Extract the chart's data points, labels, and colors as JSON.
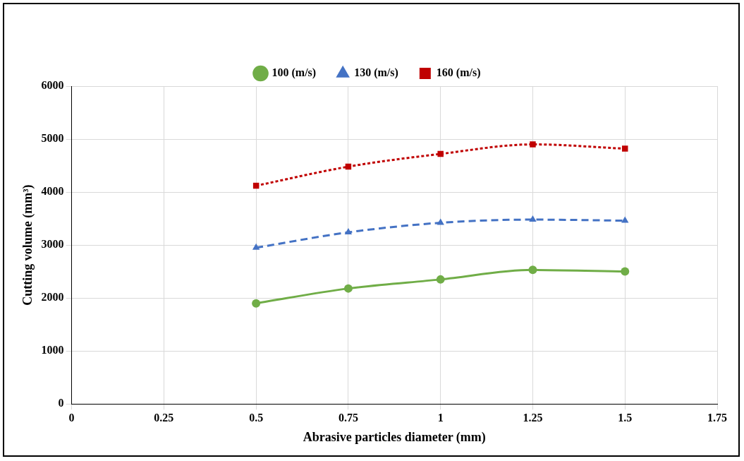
{
  "chart_data": {
    "type": "line",
    "xlabel": "Abrasive particles diameter (mm)",
    "ylabel": "Cutting volume (mm³)",
    "x": [
      0.5,
      0.75,
      1,
      1.25,
      1.5
    ],
    "series": [
      {
        "name": "100 (m/s)",
        "color": "#70ad47",
        "values": [
          1900,
          2180,
          2350,
          2530,
          2500
        ],
        "marker": "circle",
        "line_style": "solid"
      },
      {
        "name": "130 (m/s)",
        "color": "#4472c4",
        "values": [
          2950,
          3240,
          3420,
          3480,
          3460
        ],
        "marker": "triangle",
        "line_style": "dashed"
      },
      {
        "name": "160 (m/s)",
        "color": "#c00000",
        "values": [
          4120,
          4480,
          4720,
          4900,
          4820
        ],
        "marker": "square",
        "line_style": "dotted"
      }
    ],
    "xlim": [
      0,
      1.75
    ],
    "xticks": [
      0,
      0.25,
      0.5,
      0.75,
      1,
      1.25,
      1.5,
      1.75
    ],
    "ylim": [
      0,
      6000
    ],
    "yticks": [
      0,
      1000,
      2000,
      3000,
      4000,
      5000,
      6000
    ],
    "grid": true,
    "legend": "top"
  }
}
